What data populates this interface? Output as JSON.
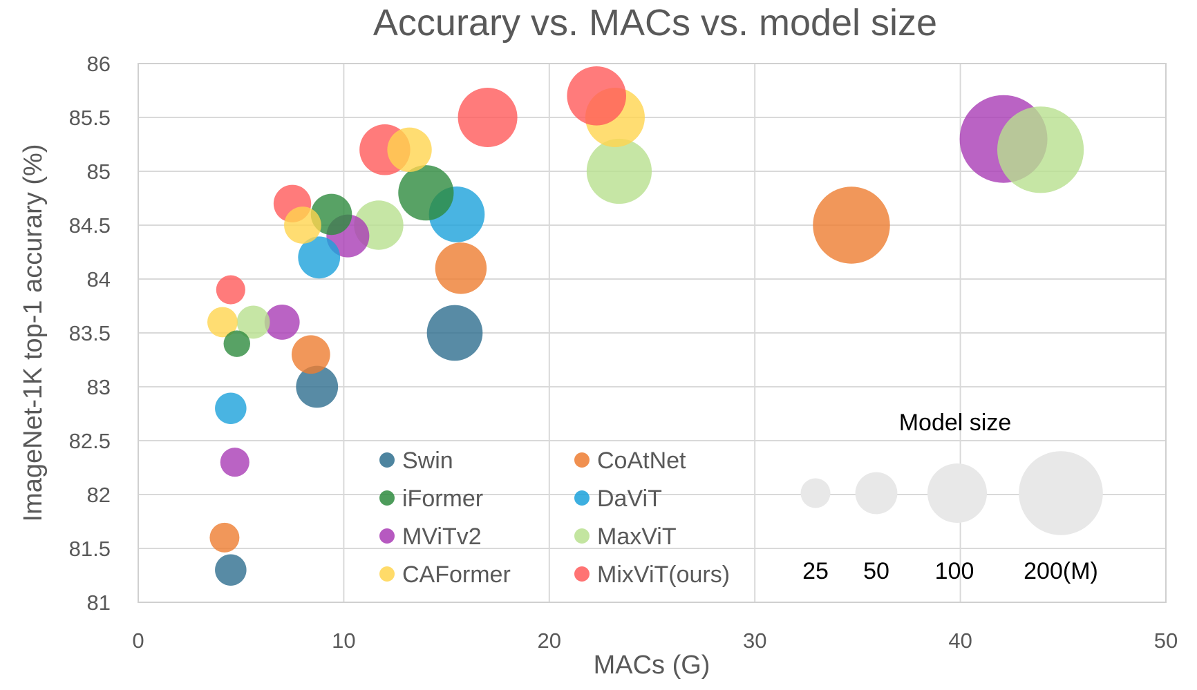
{
  "chart_data": {
    "type": "bubble",
    "title": "Accurary vs. MACs vs. model size",
    "xlabel": "MACs (G)",
    "ylabel": "ImageNet-1K top-1 accurary (%)",
    "xlim": [
      0,
      50
    ],
    "ylim": [
      81,
      86
    ],
    "xticks": [
      "0",
      "10",
      "20",
      "30",
      "40",
      "50"
    ],
    "yticks": [
      "81",
      "81.5",
      "82",
      "82.5",
      "83",
      "83.5",
      "84",
      "84.5",
      "85",
      "85.5",
      "86"
    ],
    "grid": true,
    "size_unit": "M params",
    "series": [
      {
        "name": "Swin",
        "color": "#2E6E8E",
        "points": [
          {
            "x": 4.5,
            "y": 81.3,
            "size": 28
          },
          {
            "x": 8.7,
            "y": 83.0,
            "size": 50
          },
          {
            "x": 15.4,
            "y": 83.5,
            "size": 88
          }
        ]
      },
      {
        "name": "CoAtNet",
        "color": "#ED7D31",
        "points": [
          {
            "x": 4.2,
            "y": 81.6,
            "size": 25
          },
          {
            "x": 8.4,
            "y": 83.3,
            "size": 42
          },
          {
            "x": 15.7,
            "y": 84.1,
            "size": 75
          },
          {
            "x": 34.7,
            "y": 84.5,
            "size": 168
          }
        ]
      },
      {
        "name": "iFormer",
        "color": "#2E8B3E",
        "points": [
          {
            "x": 4.8,
            "y": 83.4,
            "size": 20
          },
          {
            "x": 9.4,
            "y": 84.6,
            "size": 48
          },
          {
            "x": 14.0,
            "y": 84.8,
            "size": 87
          }
        ]
      },
      {
        "name": "DaViT",
        "color": "#1BA1DB",
        "points": [
          {
            "x": 4.5,
            "y": 82.8,
            "size": 28
          },
          {
            "x": 8.8,
            "y": 84.2,
            "size": 50
          },
          {
            "x": 15.5,
            "y": 84.6,
            "size": 88
          }
        ]
      },
      {
        "name": "MViTv2",
        "color": "#A93CB5",
        "points": [
          {
            "x": 4.7,
            "y": 82.3,
            "size": 24
          },
          {
            "x": 7.0,
            "y": 83.6,
            "size": 35
          },
          {
            "x": 10.2,
            "y": 84.4,
            "size": 52
          },
          {
            "x": 42.1,
            "y": 85.3,
            "size": 218
          }
        ]
      },
      {
        "name": "MaxViT",
        "color": "#B8E08F",
        "points": [
          {
            "x": 5.6,
            "y": 83.6,
            "size": 31
          },
          {
            "x": 11.7,
            "y": 84.5,
            "size": 69
          },
          {
            "x": 23.4,
            "y": 85.0,
            "size": 120
          },
          {
            "x": 43.9,
            "y": 85.2,
            "size": 212
          }
        ]
      },
      {
        "name": "CAFormer",
        "color": "#FFD54F",
        "points": [
          {
            "x": 4.1,
            "y": 83.6,
            "size": 26
          },
          {
            "x": 8.0,
            "y": 84.5,
            "size": 39
          },
          {
            "x": 13.2,
            "y": 85.2,
            "size": 56
          },
          {
            "x": 23.2,
            "y": 85.5,
            "size": 100
          }
        ]
      },
      {
        "name": "MixViT(ours)",
        "color": "#FF5A5A",
        "points": [
          {
            "x": 4.5,
            "y": 83.9,
            "size": 24
          },
          {
            "x": 7.5,
            "y": 84.7,
            "size": 40
          },
          {
            "x": 12.0,
            "y": 85.2,
            "size": 73
          },
          {
            "x": 17.0,
            "y": 85.5,
            "size": 100
          },
          {
            "x": 22.3,
            "y": 85.7,
            "size": 99
          }
        ]
      }
    ],
    "size_legend": {
      "title": "Model size",
      "color": "#E8E8E8",
      "items": [
        {
          "label": "25",
          "size": 25
        },
        {
          "label": "50",
          "size": 50
        },
        {
          "label": "100",
          "size": 100
        },
        {
          "label": "200(M)",
          "size": 200
        }
      ]
    }
  }
}
